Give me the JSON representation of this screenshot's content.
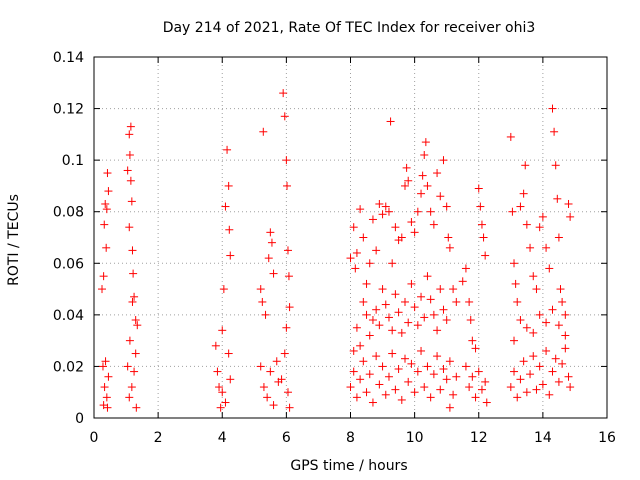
{
  "chart_data": {
    "type": "scatter",
    "title": "Day 214 of 2021, Rate Of TEC Index for receiver ohi3",
    "xlabel": "GPS time / hours",
    "ylabel": "ROTI / TECUs",
    "xlim": [
      0,
      16
    ],
    "ylim": [
      0,
      0.14
    ],
    "xticks": [
      0,
      2,
      4,
      6,
      8,
      10,
      12,
      14,
      16
    ],
    "xtick_labels": [
      "0",
      "2",
      "4",
      "6",
      "8",
      "10",
      "12",
      "14",
      "16"
    ],
    "yticks": [
      0,
      0.02,
      0.04,
      0.06,
      0.08,
      0.1,
      0.12,
      0.14
    ],
    "ytick_labels": [
      "0",
      "0.02",
      "0.04",
      "0.06",
      "0.08",
      "0.1",
      "0.12",
      "0.14"
    ],
    "grid": true,
    "marker": "+",
    "marker_color": "#ff0000",
    "series": [
      {
        "name": "ROTI",
        "points": [
          [
            0.25,
            0.05
          ],
          [
            0.3,
            0.055
          ],
          [
            0.32,
            0.075
          ],
          [
            0.35,
            0.083
          ],
          [
            0.4,
            0.081
          ],
          [
            0.42,
            0.095
          ],
          [
            0.45,
            0.088
          ],
          [
            0.38,
            0.066
          ],
          [
            0.28,
            0.02
          ],
          [
            0.33,
            0.012
          ],
          [
            0.4,
            0.008
          ],
          [
            0.45,
            0.016
          ],
          [
            0.3,
            0.005
          ],
          [
            0.36,
            0.022
          ],
          [
            0.42,
            0.004
          ],
          [
            1.05,
            0.096
          ],
          [
            1.1,
            0.11
          ],
          [
            1.12,
            0.102
          ],
          [
            1.15,
            0.113
          ],
          [
            1.18,
            0.084
          ],
          [
            1.2,
            0.065
          ],
          [
            1.22,
            0.056
          ],
          [
            1.25,
            0.047
          ],
          [
            1.3,
            0.038
          ],
          [
            1.35,
            0.036
          ],
          [
            1.1,
            0.074
          ],
          [
            1.15,
            0.092
          ],
          [
            1.12,
            0.03
          ],
          [
            1.2,
            0.045
          ],
          [
            1.3,
            0.025
          ],
          [
            1.05,
            0.02
          ],
          [
            1.1,
            0.008
          ],
          [
            1.18,
            0.012
          ],
          [
            1.25,
            0.018
          ],
          [
            1.32,
            0.004
          ],
          [
            3.8,
            0.028
          ],
          [
            3.85,
            0.018
          ],
          [
            3.9,
            0.012
          ],
          [
            4.0,
            0.034
          ],
          [
            4.05,
            0.05
          ],
          [
            4.1,
            0.082
          ],
          [
            4.15,
            0.104
          ],
          [
            4.2,
            0.09
          ],
          [
            4.22,
            0.073
          ],
          [
            4.25,
            0.063
          ],
          [
            4.0,
            0.01
          ],
          [
            4.1,
            0.006
          ],
          [
            4.2,
            0.025
          ],
          [
            4.25,
            0.015
          ],
          [
            3.95,
            0.004
          ],
          [
            5.2,
            0.05
          ],
          [
            5.25,
            0.045
          ],
          [
            5.28,
            0.111
          ],
          [
            5.35,
            0.04
          ],
          [
            5.45,
            0.062
          ],
          [
            5.5,
            0.072
          ],
          [
            5.55,
            0.068
          ],
          [
            5.6,
            0.056
          ],
          [
            5.2,
            0.02
          ],
          [
            5.3,
            0.012
          ],
          [
            5.4,
            0.008
          ],
          [
            5.5,
            0.018
          ],
          [
            5.6,
            0.005
          ],
          [
            5.7,
            0.022
          ],
          [
            5.75,
            0.014
          ],
          [
            5.9,
            0.126
          ],
          [
            5.95,
            0.117
          ],
          [
            6.0,
            0.1
          ],
          [
            6.02,
            0.09
          ],
          [
            6.05,
            0.065
          ],
          [
            6.08,
            0.055
          ],
          [
            6.1,
            0.043
          ],
          [
            6.0,
            0.035
          ],
          [
            5.95,
            0.025
          ],
          [
            5.85,
            0.015
          ],
          [
            6.05,
            0.01
          ],
          [
            6.1,
            0.004
          ],
          [
            8.0,
            0.062
          ],
          [
            8.1,
            0.074
          ],
          [
            8.15,
            0.058
          ],
          [
            8.2,
            0.064
          ],
          [
            8.3,
            0.081
          ],
          [
            8.4,
            0.07
          ],
          [
            8.5,
            0.052
          ],
          [
            8.6,
            0.06
          ],
          [
            8.7,
            0.077
          ],
          [
            8.8,
            0.065
          ],
          [
            8.9,
            0.083
          ],
          [
            9.0,
            0.079
          ],
          [
            9.1,
            0.082
          ],
          [
            9.2,
            0.08
          ],
          [
            9.25,
            0.115
          ],
          [
            9.3,
            0.06
          ],
          [
            9.4,
            0.074
          ],
          [
            9.5,
            0.069
          ],
          [
            9.6,
            0.07
          ],
          [
            9.7,
            0.09
          ],
          [
            9.75,
            0.097
          ],
          [
            9.8,
            0.092
          ],
          [
            9.9,
            0.076
          ],
          [
            10.0,
            0.072
          ],
          [
            10.1,
            0.08
          ],
          [
            10.2,
            0.087
          ],
          [
            10.25,
            0.094
          ],
          [
            10.3,
            0.102
          ],
          [
            10.35,
            0.107
          ],
          [
            10.4,
            0.09
          ],
          [
            10.5,
            0.08
          ],
          [
            10.6,
            0.075
          ],
          [
            10.7,
            0.095
          ],
          [
            10.8,
            0.086
          ],
          [
            10.9,
            0.1
          ],
          [
            11.0,
            0.082
          ],
          [
            11.05,
            0.07
          ],
          [
            11.1,
            0.066
          ],
          [
            11.2,
            0.05
          ],
          [
            11.3,
            0.045
          ],
          [
            8.1,
            0.026
          ],
          [
            8.2,
            0.035
          ],
          [
            8.3,
            0.028
          ],
          [
            8.4,
            0.045
          ],
          [
            8.5,
            0.04
          ],
          [
            8.6,
            0.032
          ],
          [
            8.7,
            0.038
          ],
          [
            8.8,
            0.042
          ],
          [
            8.9,
            0.036
          ],
          [
            9.0,
            0.05
          ],
          [
            9.1,
            0.044
          ],
          [
            9.2,
            0.039
          ],
          [
            9.3,
            0.034
          ],
          [
            9.4,
            0.048
          ],
          [
            9.5,
            0.041
          ],
          [
            9.6,
            0.033
          ],
          [
            9.7,
            0.045
          ],
          [
            9.8,
            0.037
          ],
          [
            9.9,
            0.052
          ],
          [
            10.0,
            0.043
          ],
          [
            10.1,
            0.036
          ],
          [
            10.2,
            0.047
          ],
          [
            10.3,
            0.039
          ],
          [
            10.4,
            0.055
          ],
          [
            10.5,
            0.046
          ],
          [
            10.6,
            0.04
          ],
          [
            10.7,
            0.034
          ],
          [
            10.8,
            0.05
          ],
          [
            10.9,
            0.042
          ],
          [
            11.0,
            0.038
          ],
          [
            8.0,
            0.012
          ],
          [
            8.1,
            0.018
          ],
          [
            8.2,
            0.008
          ],
          [
            8.3,
            0.015
          ],
          [
            8.4,
            0.022
          ],
          [
            8.5,
            0.01
          ],
          [
            8.6,
            0.017
          ],
          [
            8.7,
            0.006
          ],
          [
            8.8,
            0.024
          ],
          [
            8.9,
            0.013
          ],
          [
            9.0,
            0.02
          ],
          [
            9.1,
            0.009
          ],
          [
            9.2,
            0.016
          ],
          [
            9.3,
            0.025
          ],
          [
            9.4,
            0.011
          ],
          [
            9.5,
            0.019
          ],
          [
            9.6,
            0.007
          ],
          [
            9.7,
            0.023
          ],
          [
            9.8,
            0.014
          ],
          [
            9.9,
            0.021
          ],
          [
            10.0,
            0.01
          ],
          [
            10.1,
            0.018
          ],
          [
            10.2,
            0.026
          ],
          [
            10.3,
            0.012
          ],
          [
            10.4,
            0.02
          ],
          [
            10.5,
            0.008
          ],
          [
            10.6,
            0.017
          ],
          [
            10.7,
            0.024
          ],
          [
            10.8,
            0.011
          ],
          [
            10.9,
            0.019
          ],
          [
            11.0,
            0.015
          ],
          [
            11.1,
            0.022
          ],
          [
            11.2,
            0.009
          ],
          [
            11.3,
            0.016
          ],
          [
            11.1,
            0.004
          ],
          [
            11.5,
            0.053
          ],
          [
            11.6,
            0.058
          ],
          [
            11.7,
            0.045
          ],
          [
            11.75,
            0.038
          ],
          [
            11.8,
            0.03
          ],
          [
            11.9,
            0.027
          ],
          [
            12.0,
            0.089
          ],
          [
            12.05,
            0.082
          ],
          [
            12.1,
            0.075
          ],
          [
            12.15,
            0.07
          ],
          [
            12.2,
            0.063
          ],
          [
            11.6,
            0.02
          ],
          [
            11.7,
            0.012
          ],
          [
            11.8,
            0.016
          ],
          [
            11.9,
            0.008
          ],
          [
            12.0,
            0.018
          ],
          [
            12.1,
            0.011
          ],
          [
            12.2,
            0.014
          ],
          [
            12.25,
            0.006
          ],
          [
            13.0,
            0.109
          ],
          [
            13.05,
            0.08
          ],
          [
            13.1,
            0.06
          ],
          [
            13.15,
            0.052
          ],
          [
            13.2,
            0.045
          ],
          [
            13.3,
            0.082
          ],
          [
            13.4,
            0.087
          ],
          [
            13.45,
            0.098
          ],
          [
            13.5,
            0.075
          ],
          [
            13.6,
            0.066
          ],
          [
            13.7,
            0.055
          ],
          [
            13.8,
            0.05
          ],
          [
            13.9,
            0.074
          ],
          [
            14.0,
            0.078
          ],
          [
            14.1,
            0.066
          ],
          [
            14.2,
            0.058
          ],
          [
            14.3,
            0.12
          ],
          [
            14.35,
            0.111
          ],
          [
            14.4,
            0.098
          ],
          [
            14.45,
            0.085
          ],
          [
            14.5,
            0.07
          ],
          [
            14.55,
            0.05
          ],
          [
            14.6,
            0.045
          ],
          [
            14.7,
            0.04
          ],
          [
            14.8,
            0.083
          ],
          [
            14.85,
            0.078
          ],
          [
            13.1,
            0.03
          ],
          [
            13.3,
            0.038
          ],
          [
            13.5,
            0.035
          ],
          [
            13.7,
            0.033
          ],
          [
            13.9,
            0.04
          ],
          [
            14.1,
            0.037
          ],
          [
            14.3,
            0.042
          ],
          [
            14.5,
            0.036
          ],
          [
            14.7,
            0.032
          ],
          [
            13.0,
            0.012
          ],
          [
            13.1,
            0.018
          ],
          [
            13.2,
            0.008
          ],
          [
            13.3,
            0.015
          ],
          [
            13.4,
            0.022
          ],
          [
            13.5,
            0.01
          ],
          [
            13.6,
            0.017
          ],
          [
            13.7,
            0.024
          ],
          [
            13.8,
            0.011
          ],
          [
            13.9,
            0.02
          ],
          [
            14.0,
            0.013
          ],
          [
            14.1,
            0.026
          ],
          [
            14.2,
            0.009
          ],
          [
            14.3,
            0.018
          ],
          [
            14.4,
            0.023
          ],
          [
            14.5,
            0.014
          ],
          [
            14.6,
            0.021
          ],
          [
            14.7,
            0.027
          ],
          [
            14.8,
            0.016
          ],
          [
            14.85,
            0.012
          ]
        ]
      }
    ]
  }
}
